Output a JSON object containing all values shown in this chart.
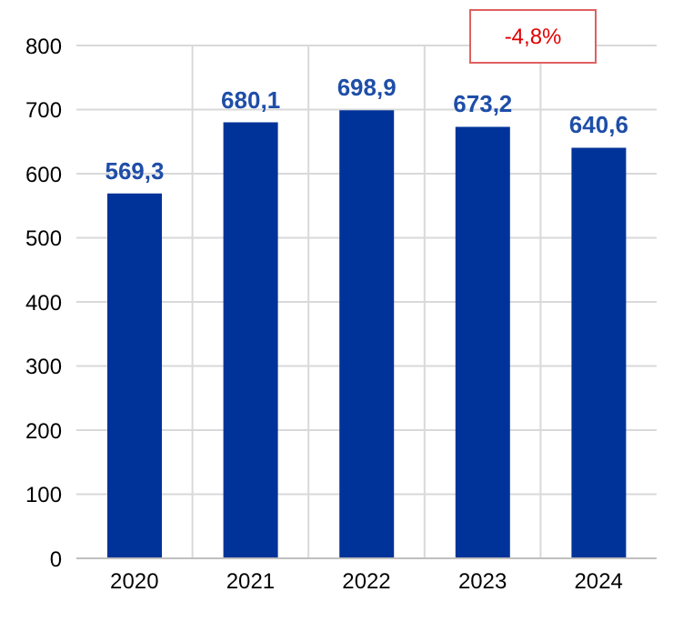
{
  "chart_data": {
    "type": "bar",
    "categories": [
      "2020",
      "2021",
      "2022",
      "2023",
      "2024"
    ],
    "values": [
      569.3,
      680.1,
      698.9,
      673.2,
      640.6
    ],
    "value_labels": [
      "569,3",
      "680,1",
      "698,9",
      "673,2",
      "640,6"
    ],
    "color": "#003399",
    "ylim": [
      0,
      800
    ],
    "yticks": [
      0,
      100,
      200,
      300,
      400,
      500,
      600,
      700,
      800
    ],
    "grid": true,
    "annotations": [
      "-4,8%"
    ]
  }
}
